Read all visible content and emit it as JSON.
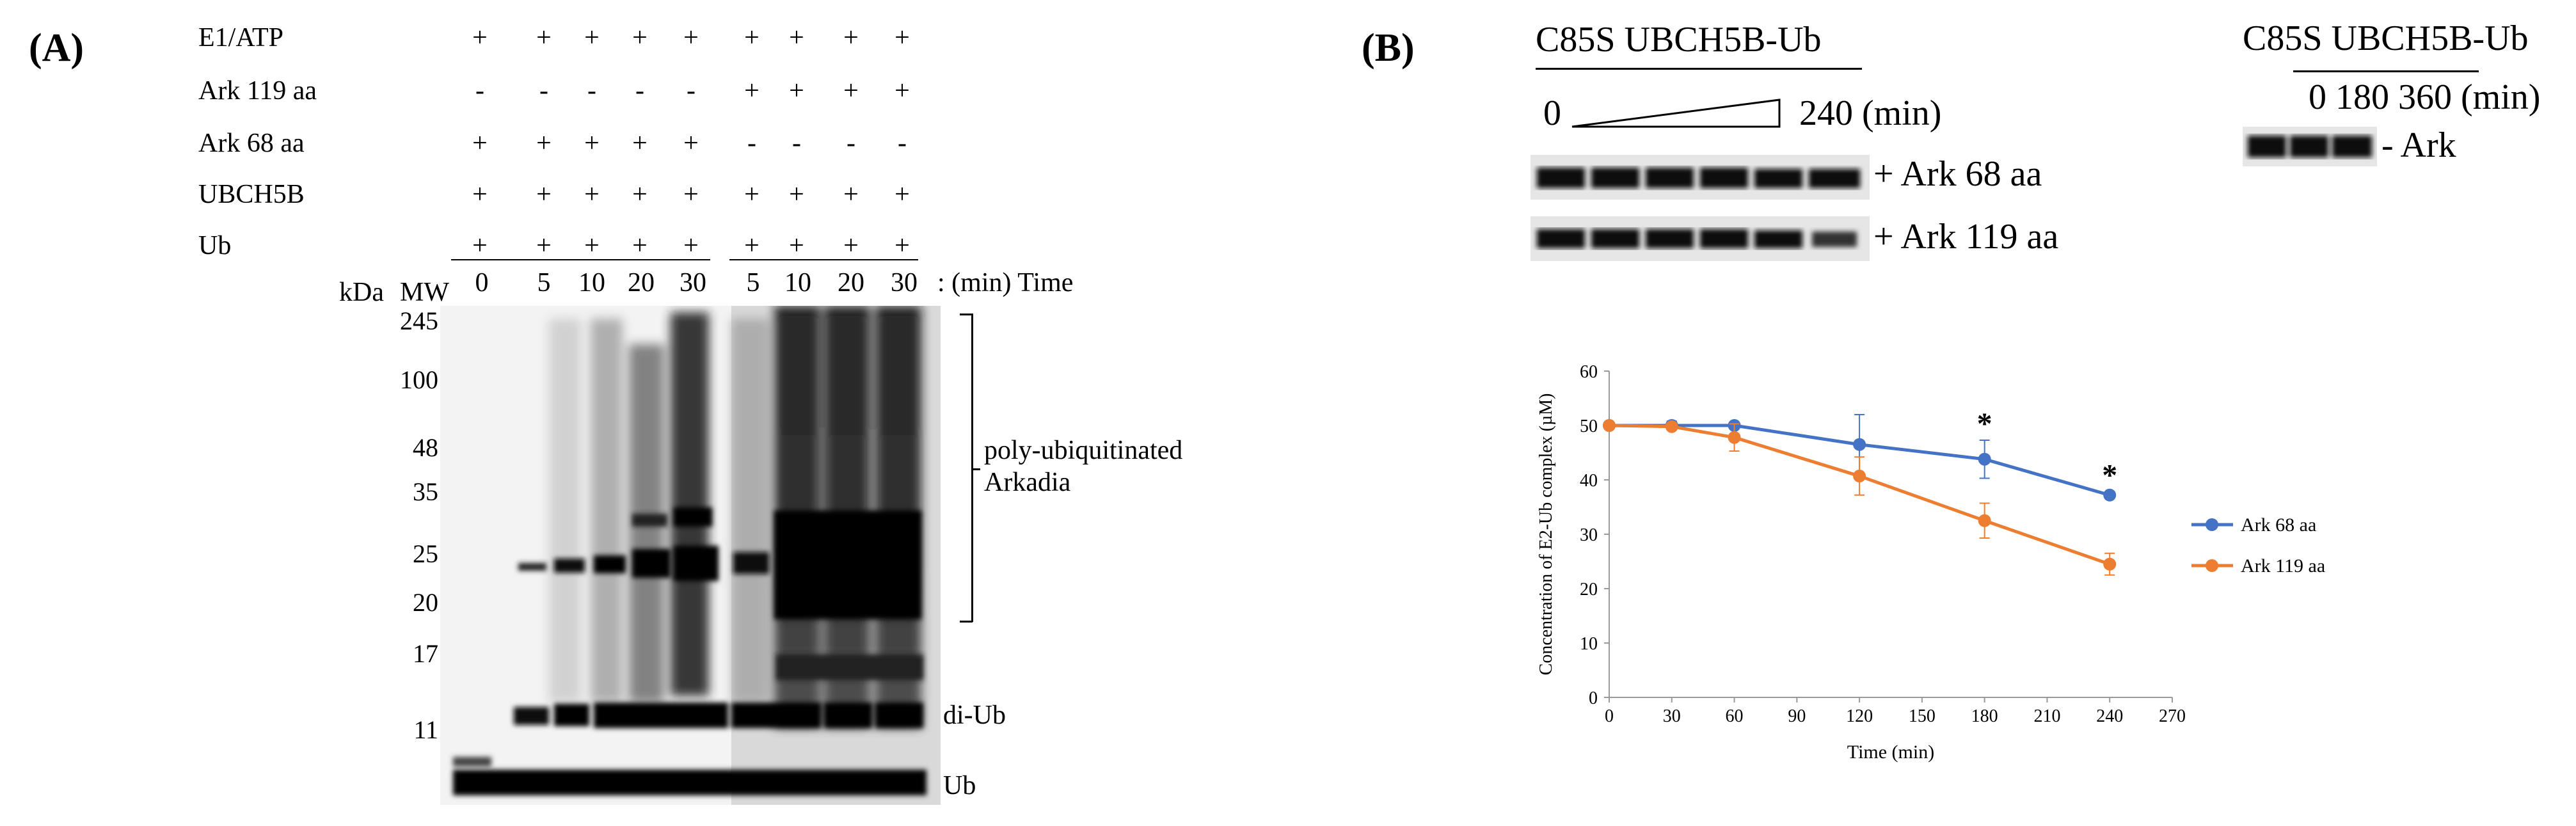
{
  "panel_a": {
    "label": "(A)",
    "rows": [
      {
        "label": "E1/ATP",
        "values": [
          "+",
          "+",
          "+",
          "+",
          "+",
          "+",
          "+",
          "+",
          "+"
        ]
      },
      {
        "label": "Ark  119 aa",
        "values": [
          "-",
          "-",
          "-",
          "-",
          "-",
          "+",
          "+",
          "+",
          "+"
        ]
      },
      {
        "label": "Ark 68 aa",
        "values": [
          "+",
          "+",
          "+",
          "+",
          "+",
          "-",
          "-",
          "-",
          "-"
        ]
      },
      {
        "label": "UBCH5B",
        "values": [
          "+",
          "+",
          "+",
          "+",
          "+",
          "+",
          "+",
          "+",
          "+"
        ]
      },
      {
        "label": "Ub",
        "values": [
          "+",
          "+",
          "+",
          "+",
          "+",
          "+",
          "+",
          "+",
          "+"
        ]
      }
    ],
    "time_points": [
      "0",
      "5",
      "10",
      "20",
      "30",
      "5",
      "10",
      "20",
      "30"
    ],
    "time_label": ": (min) Time",
    "kda_label": "kDa",
    "mw_label": "MW",
    "mw_markers": [
      "245",
      "100",
      "48",
      "35",
      "25",
      "20",
      "17",
      "11"
    ],
    "bracket_label_line1": "poly-ubiquitinated",
    "bracket_label_line2": "Arkadia",
    "di_ub_label": "di-Ub",
    "ub_label": "Ub"
  },
  "panel_b": {
    "label": "(B)",
    "blot1_title": "C85S UBCH5B-Ub",
    "blot1_time_start": "0",
    "blot1_time_end": "240 (min)",
    "blot1_row1_label": "+ Ark 68 aa",
    "blot1_row2_label": "+ Ark 119 aa",
    "blot2_title": "C85S UBCH5B-Ub",
    "blot2_times": "0 180 360 (min)",
    "blot2_label": "- Ark"
  },
  "chart_data": {
    "type": "line",
    "xlabel": "Time (min)",
    "ylabel": "Concentration of E2-Ub complex (µM)",
    "xlim": [
      0,
      270
    ],
    "ylim": [
      0,
      60
    ],
    "xticks": [
      0,
      30,
      60,
      90,
      120,
      150,
      180,
      210,
      240,
      270
    ],
    "yticks": [
      0,
      10,
      20,
      30,
      40,
      50,
      60
    ],
    "grid": false,
    "legend_position": "right",
    "series": [
      {
        "name": "Ark 68 aa",
        "color": "#4472C4",
        "x": [
          0,
          30,
          60,
          120,
          180,
          240
        ],
        "y": [
          50,
          50,
          50,
          46.5,
          43.8,
          37.2
        ],
        "err": [
          0,
          0.8,
          0.5,
          5.5,
          3.5,
          0.6
        ]
      },
      {
        "name": "Ark 119 aa",
        "color": "#ED7D31",
        "x": [
          0,
          30,
          60,
          120,
          180,
          240
        ],
        "y": [
          50,
          49.8,
          47.8,
          40.7,
          32.5,
          24.5
        ],
        "err": [
          0,
          0.5,
          2.5,
          3.5,
          3.2,
          2.0
        ]
      }
    ],
    "annotations": [
      {
        "text": "*",
        "x": 180
      },
      {
        "text": "*",
        "x": 240
      }
    ]
  }
}
